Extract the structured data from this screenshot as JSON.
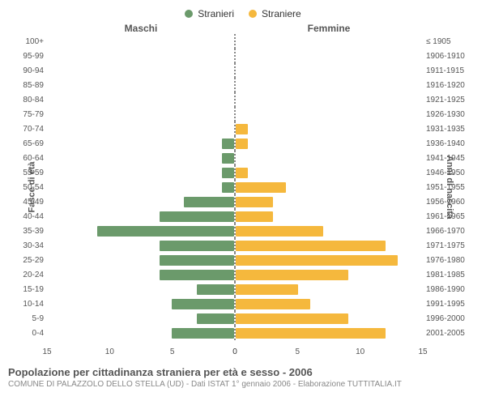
{
  "legend": {
    "male": {
      "label": "Stranieri",
      "color": "#6b9a6b"
    },
    "female": {
      "label": "Straniere",
      "color": "#f5b83d"
    }
  },
  "headers": {
    "left": "Maschi",
    "right": "Femmine"
  },
  "axis_titles": {
    "left": "Fasce di età",
    "right": "Anni di nascita"
  },
  "x": {
    "max": 15,
    "ticks_left": [
      15,
      10,
      5,
      0
    ],
    "ticks_right": [
      0,
      5,
      10,
      15
    ]
  },
  "rows": [
    {
      "age": "100+",
      "birth": "≤ 1905",
      "m": 0,
      "f": 0
    },
    {
      "age": "95-99",
      "birth": "1906-1910",
      "m": 0,
      "f": 0
    },
    {
      "age": "90-94",
      "birth": "1911-1915",
      "m": 0,
      "f": 0
    },
    {
      "age": "85-89",
      "birth": "1916-1920",
      "m": 0,
      "f": 0
    },
    {
      "age": "80-84",
      "birth": "1921-1925",
      "m": 0,
      "f": 0
    },
    {
      "age": "75-79",
      "birth": "1926-1930",
      "m": 0,
      "f": 0
    },
    {
      "age": "70-74",
      "birth": "1931-1935",
      "m": 0,
      "f": 1
    },
    {
      "age": "65-69",
      "birth": "1936-1940",
      "m": 1,
      "f": 1
    },
    {
      "age": "60-64",
      "birth": "1941-1945",
      "m": 1,
      "f": 0
    },
    {
      "age": "55-59",
      "birth": "1946-1950",
      "m": 1,
      "f": 1
    },
    {
      "age": "50-54",
      "birth": "1951-1955",
      "m": 1,
      "f": 4
    },
    {
      "age": "45-49",
      "birth": "1956-1960",
      "m": 4,
      "f": 3
    },
    {
      "age": "40-44",
      "birth": "1961-1965",
      "m": 6,
      "f": 3
    },
    {
      "age": "35-39",
      "birth": "1966-1970",
      "m": 11,
      "f": 7
    },
    {
      "age": "30-34",
      "birth": "1971-1975",
      "m": 6,
      "f": 12
    },
    {
      "age": "25-29",
      "birth": "1976-1980",
      "m": 6,
      "f": 13
    },
    {
      "age": "20-24",
      "birth": "1981-1985",
      "m": 6,
      "f": 9
    },
    {
      "age": "15-19",
      "birth": "1986-1990",
      "m": 3,
      "f": 5
    },
    {
      "age": "10-14",
      "birth": "1991-1995",
      "m": 5,
      "f": 6
    },
    {
      "age": "5-9",
      "birth": "1996-2000",
      "m": 3,
      "f": 9
    },
    {
      "age": "0-4",
      "birth": "2001-2005",
      "m": 5,
      "f": 12
    }
  ],
  "footer": {
    "title": "Popolazione per cittadinanza straniera per età e sesso - 2006",
    "sub": "COMUNE DI PALAZZOLO DELLO STELLA (UD) - Dati ISTAT 1° gennaio 2006 - Elaborazione TUTTITALIA.IT"
  },
  "colors": {
    "bg": "#ffffff",
    "axis": "#888888"
  }
}
